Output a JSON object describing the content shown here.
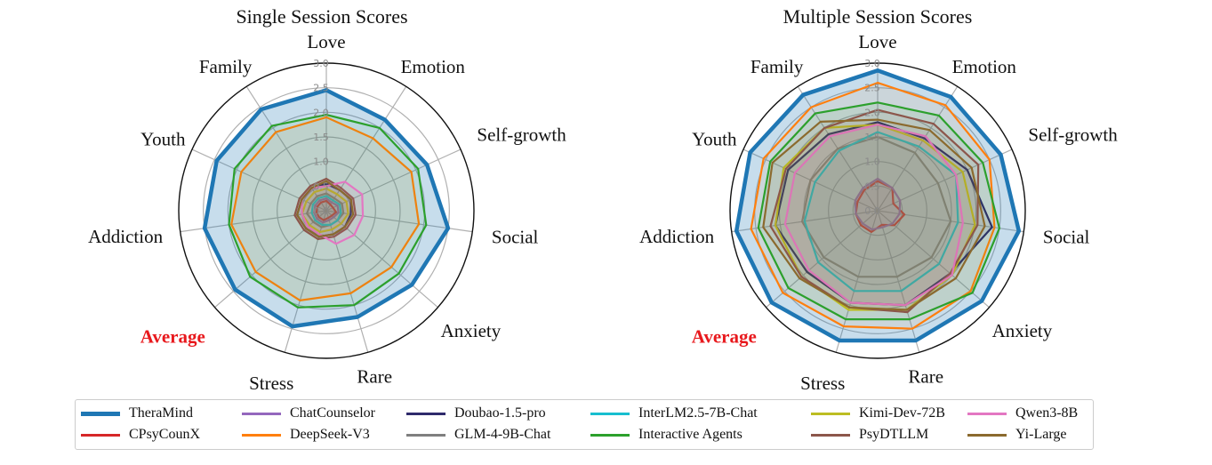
{
  "chart_data": {
    "type": "radar",
    "categories": [
      "Love",
      "Emotion",
      "Self-growth",
      "Social",
      "Anxiety",
      "Rare",
      "Stress",
      "Average",
      "Addiction",
      "Youth",
      "Family"
    ],
    "highlight_category": "Average",
    "highlight_color": "#e8191d",
    "radial_ticks": [
      "0.0",
      "0.5",
      "1.0",
      "1.5",
      "2.0",
      "2.5",
      "3.0"
    ],
    "rlim": [
      0,
      3.0
    ],
    "series": [
      {
        "name": "TheraMind",
        "color": "#1f77b4"
      },
      {
        "name": "CPsyCounX",
        "color": "#d62728"
      },
      {
        "name": "ChatCounselor",
        "color": "#9467bd"
      },
      {
        "name": "DeepSeek-V3",
        "color": "#ff7f0e"
      },
      {
        "name": "Doubao-1.5-pro",
        "color": "#2e2a6b"
      },
      {
        "name": "GLM-4-9B-Chat",
        "color": "#7f7f7f"
      },
      {
        "name": "InterLM2.5-7B-Chat",
        "color": "#17becf"
      },
      {
        "name": "Interactive Agents",
        "color": "#2ca02c"
      },
      {
        "name": "Kimi-Dev-72B",
        "color": "#bcbd22"
      },
      {
        "name": "PsyDTLLM",
        "color": "#8c564b"
      },
      {
        "name": "Qwen3-8B",
        "color": "#e377c2"
      },
      {
        "name": "Yi-Large",
        "color": "#8b6a2e"
      }
    ],
    "charts": [
      {
        "title": "Single Session Scores",
        "values": {
          "TheraMind": [
            2.45,
            2.2,
            2.25,
            2.5,
            2.3,
            2.25,
            2.45,
            2.45,
            2.5,
            2.45,
            2.45
          ],
          "CPsyCounX": [
            0.2,
            0.15,
            0.15,
            0.2,
            0.15,
            0.15,
            0.2,
            0.2,
            0.2,
            0.2,
            0.2
          ],
          "ChatCounselor": [
            0.25,
            0.2,
            0.25,
            0.25,
            0.2,
            0.2,
            0.25,
            0.25,
            0.25,
            0.25,
            0.25
          ],
          "DeepSeek-V3": [
            1.9,
            1.75,
            1.9,
            1.9,
            1.75,
            1.75,
            1.9,
            1.9,
            1.95,
            1.9,
            1.9
          ],
          "Doubao-1.5-pro": [
            0.55,
            0.5,
            0.55,
            0.5,
            0.5,
            0.5,
            0.55,
            0.55,
            0.6,
            0.55,
            0.55
          ],
          "GLM-4-9B-Chat": [
            0.35,
            0.3,
            0.35,
            0.35,
            0.3,
            0.3,
            0.35,
            0.35,
            0.4,
            0.35,
            0.35
          ],
          "InterLM2.5-7B-Chat": [
            0.3,
            0.25,
            0.3,
            0.3,
            0.3,
            0.3,
            0.3,
            0.3,
            0.3,
            0.3,
            0.3
          ],
          "Interactive Agents": [
            1.95,
            2.0,
            2.05,
            2.05,
            1.95,
            2.0,
            2.05,
            2.05,
            2.0,
            2.05,
            2.05
          ],
          "Kimi-Dev-72B": [
            0.45,
            0.4,
            0.45,
            0.45,
            0.4,
            0.4,
            0.45,
            0.45,
            0.5,
            0.45,
            0.45
          ],
          "PsyDTLLM": [
            0.65,
            0.55,
            0.6,
            0.6,
            0.55,
            0.55,
            0.6,
            0.6,
            0.65,
            0.6,
            0.6
          ],
          "Qwen3-8B": [
            0.5,
            0.7,
            0.8,
            0.75,
            0.75,
            0.7,
            0.5,
            0.5,
            0.5,
            0.55,
            0.55
          ],
          "Yi-Large": [
            0.6,
            0.5,
            0.55,
            0.55,
            0.5,
            0.5,
            0.55,
            0.55,
            0.6,
            0.55,
            0.55
          ]
        }
      },
      {
        "title": "Multiple Session Scores",
        "values": {
          "TheraMind": [
            2.85,
            2.75,
            2.75,
            2.9,
            2.8,
            2.75,
            2.75,
            2.85,
            2.9,
            2.85,
            2.8
          ],
          "CPsyCounX": [
            0.6,
            0.55,
            0.35,
            0.55,
            0.45,
            0.3,
            0.45,
            0.45,
            0.45,
            0.45,
            0.5
          ],
          "ChatCounselor": [
            0.65,
            0.55,
            0.5,
            0.45,
            0.4,
            0.35,
            0.4,
            0.4,
            0.45,
            0.5,
            0.55
          ],
          "DeepSeek-V3": [
            2.6,
            2.55,
            2.5,
            2.4,
            2.5,
            2.5,
            2.45,
            2.55,
            2.6,
            2.55,
            2.5
          ],
          "Doubao-1.5-pro": [
            1.8,
            1.75,
            2.0,
            2.35,
            1.95,
            2.0,
            1.95,
            1.9,
            2.1,
            2.0,
            1.85
          ],
          "GLM-4-9B-Chat": [
            1.5,
            1.4,
            1.35,
            1.5,
            1.45,
            1.4,
            1.4,
            1.45,
            1.55,
            1.5,
            1.5
          ],
          "InterLM2.5-7B-Chat": [
            1.6,
            1.55,
            1.75,
            1.65,
            1.65,
            1.7,
            1.7,
            1.6,
            1.5,
            1.4,
            1.45
          ],
          "Interactive Agents": [
            2.2,
            2.3,
            2.35,
            2.5,
            2.55,
            2.3,
            2.3,
            2.4,
            2.45,
            2.4,
            2.35
          ],
          "Kimi-Dev-72B": [
            1.75,
            1.7,
            1.9,
            2.0,
            2.0,
            2.1,
            2.1,
            2.05,
            2.1,
            2.1,
            2.0
          ],
          "PsyDTLLM": [
            2.05,
            2.1,
            2.25,
            2.05,
            1.95,
            2.15,
            2.05,
            2.05,
            2.2,
            2.05,
            2.0
          ],
          "Qwen3-8B": [
            1.75,
            1.8,
            1.75,
            1.75,
            2.0,
            2.0,
            1.95,
            1.85,
            1.9,
            1.85,
            1.8
          ],
          "Yi-Large": [
            1.85,
            1.95,
            2.1,
            2.2,
            2.1,
            2.1,
            2.05,
            2.1,
            2.35,
            2.35,
            2.15
          ]
        }
      }
    ]
  }
}
